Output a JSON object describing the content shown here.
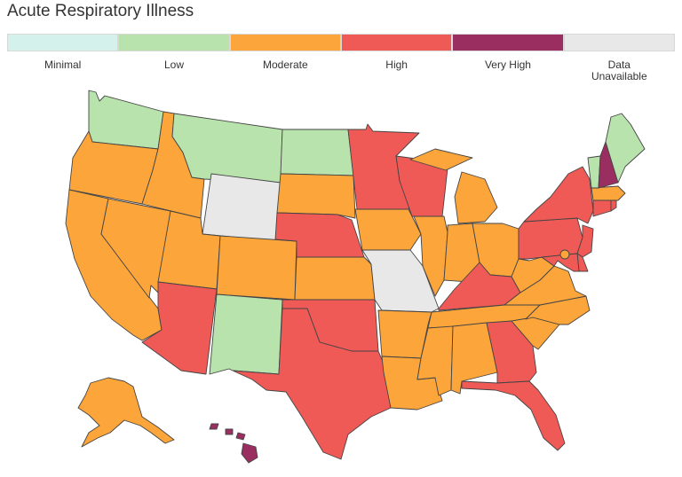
{
  "title": "Acute Respiratory Illness",
  "legend": [
    {
      "level": "minimal",
      "label": "Minimal",
      "color": "#d5f1ec"
    },
    {
      "level": "low",
      "label": "Low",
      "color": "#b9e3ad"
    },
    {
      "level": "moderate",
      "label": "Moderate",
      "color": "#fca53a"
    },
    {
      "level": "high",
      "label": "High",
      "color": "#ef5a57"
    },
    {
      "level": "very-high",
      "label": "Very High",
      "color": "#9a2e61"
    },
    {
      "level": "unavailable",
      "label": "Data\nUnavailable",
      "color": "#e8e8e8"
    }
  ],
  "states": {
    "WA": "low",
    "OR": "moderate",
    "CA": "moderate",
    "NV": "moderate",
    "ID": "moderate",
    "MT": "low",
    "WY": "unavailable",
    "UT": "moderate",
    "AZ": "high",
    "CO": "moderate",
    "NM": "low",
    "ND": "low",
    "SD": "moderate",
    "NE": "high",
    "KS": "moderate",
    "OK": "high",
    "TX": "high",
    "MN": "high",
    "IA": "moderate",
    "MO": "unavailable",
    "AR": "moderate",
    "LA": "moderate",
    "WI": "high",
    "IL": "moderate",
    "MI": "moderate",
    "IN": "moderate",
    "OH": "moderate",
    "KY": "high",
    "TN": "moderate",
    "MS": "moderate",
    "AL": "moderate",
    "GA": "high",
    "FL": "high",
    "SC": "moderate",
    "NC": "moderate",
    "VA": "moderate",
    "WV": "moderate",
    "PA": "high",
    "NY": "high",
    "NJ": "high",
    "DE": "high",
    "MD": "high",
    "DC": "moderate",
    "CT": "high",
    "RI": "high",
    "MA": "moderate",
    "VT": "low",
    "NH": "very-high",
    "ME": "low",
    "AK": "moderate",
    "HI": "very-high"
  }
}
